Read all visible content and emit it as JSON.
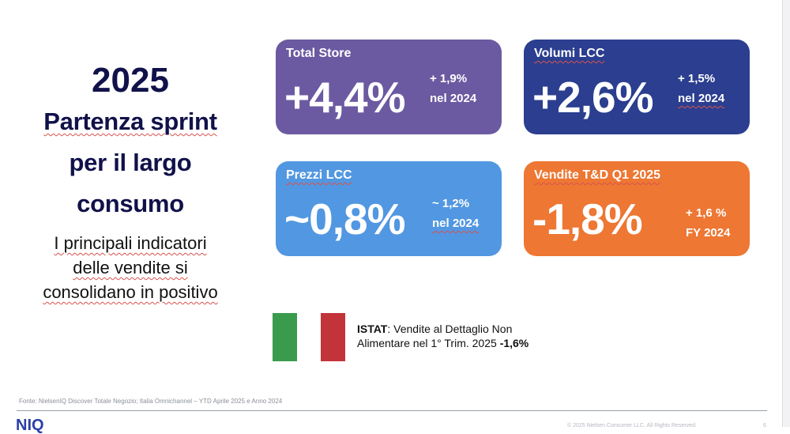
{
  "headline": {
    "year": "2025",
    "title": [
      "Partenza sprint",
      "per il largo",
      "consumo"
    ],
    "subtitle": [
      "I principali indicatori",
      "delle vendite si",
      "consolidano in positivo"
    ]
  },
  "cards": [
    {
      "label": "Total Store",
      "value": "+4,4%",
      "side1": "+ 1,9%",
      "side2": "nel 2024",
      "color": "#6b5aa1"
    },
    {
      "label": "Volumi LCC",
      "value": "+2,6%",
      "side1": "+ 1,5%",
      "side2": "nel 2024",
      "color": "#2b3e8f"
    },
    {
      "label": "Prezzi LCC",
      "value": "~0,8%",
      "side1": "~ 1,2%",
      "side2": "nel 2024",
      "color": "#5297e1"
    },
    {
      "label": "Vendite T&D Q1 2025",
      "value": "-1,8%",
      "side1": "+ 1,6 %",
      "side2": "FY 2024",
      "color": "#ed7733"
    }
  ],
  "flag_colors": {
    "green": "#3a9b4d",
    "white": "#ffffff",
    "red": "#c3343a"
  },
  "istat": {
    "bold": "ISTAT",
    "text1": ": Vendite al Dettaglio Non",
    "text2": "Alimentare nel 1° Trim. 2025 ",
    "value": "-1,6%"
  },
  "footer": {
    "source": "Fonte: NielsenIQ Discover Totale Negozio; Italia Omnichannel – YTD  Aprile 2025 e Anno 2024",
    "logo": "NIQ",
    "copyright": "© 2025 Nielsen Consumer LLC. All Rights Reserved.",
    "page_number": "6"
  }
}
